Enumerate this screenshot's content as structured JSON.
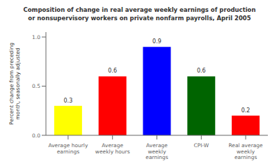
{
  "chart_data": {
    "type": "bar",
    "title": "Composition of change in real average weekly earnings of production\nor nonsupervisory workers on private nonfarm payrolls, April 2005",
    "categories": [
      "Average hourly\nearnings",
      "Average\nweekly hours",
      "Average\nweekly\nearnings",
      "CPI-W",
      "Real average\nweekly\nearnings"
    ],
    "values": [
      0.3,
      0.6,
      0.9,
      0.6,
      0.2
    ],
    "colors": [
      "#FFFF00",
      "#FF0000",
      "#0000FF",
      "#006400",
      "#FF0000"
    ],
    "ylabel": "Percent change from preceding\nmonth, seasonally adjusted",
    "ylim": [
      0.0,
      1.05
    ],
    "yticks": [
      {
        "value": 0.0,
        "label": "0.0"
      },
      0.5,
      {
        "value": 1.0,
        "label": "1.0"
      }
    ],
    "grid": false,
    "data_labels": true
  }
}
